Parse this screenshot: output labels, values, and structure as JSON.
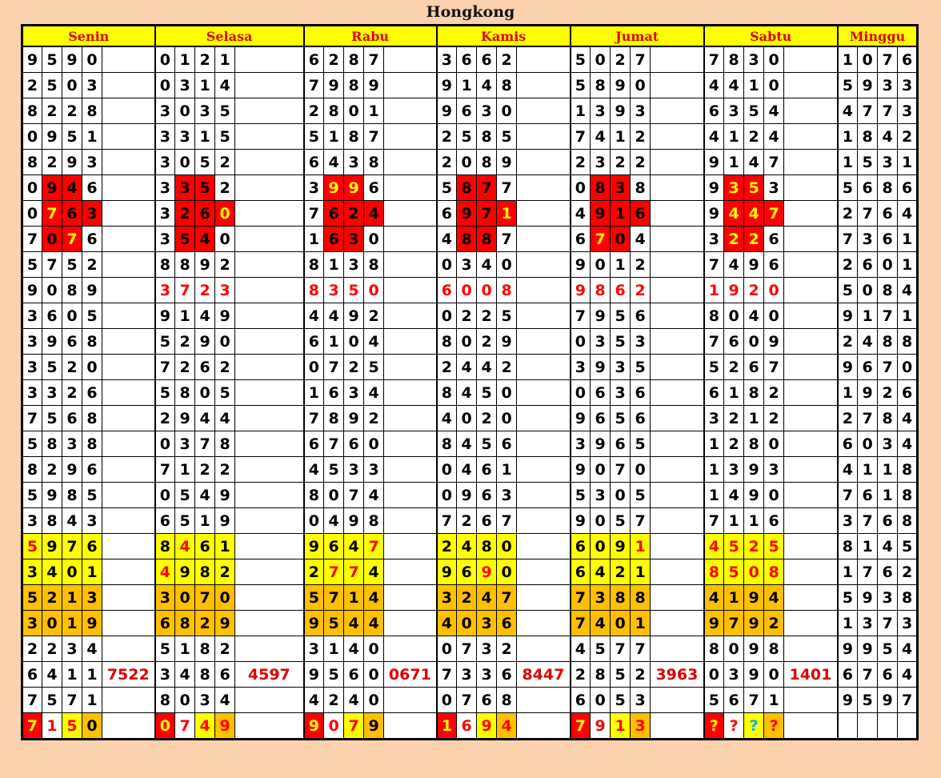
{
  "title": "Hongkong",
  "colors": {
    "header_bg": "#ffff00",
    "header_text": "#e00000",
    "red": "#ff0000",
    "yellow": "#ffff00",
    "orange": "#ffc000",
    "cyan": "#00b0f0",
    "page_bg": "#fbd2ad"
  },
  "cell_codes": {
    "bg": {
      "w": "white",
      "r": "red",
      "y": "yellow",
      "o": "orange"
    },
    "fg": {
      "k": "black",
      "r": "red",
      "y": "yellow",
      "c": "cyan"
    }
  },
  "days": [
    "Senin",
    "Selasa",
    "Rabu",
    "Kamis",
    "Jumat",
    "Sabtu",
    "Minggu"
  ],
  "rows": [
    [
      "9590",
      "0121",
      "6287",
      "3662",
      "5027",
      "7830",
      "1076"
    ],
    [
      "2503",
      "0314",
      "7989",
      "9148",
      "5890",
      "4410",
      "5933"
    ],
    [
      "8228",
      "3035",
      "2801",
      "9630",
      "1393",
      "6354",
      "4773"
    ],
    [
      "0951",
      "3315",
      "5187",
      "2585",
      "7412",
      "4124",
      "1842"
    ],
    [
      "8293",
      "3052",
      "6438",
      "2089",
      "2322",
      "9147",
      "1531"
    ],
    [
      {
        "d": "0946",
        "bg": "wrrw"
      },
      {
        "d": "3352",
        "bg": "wrrw"
      },
      {
        "d": "3996",
        "bg": "wrrw",
        "fg": "kyyk"
      },
      {
        "d": "5877",
        "bg": "wrrw"
      },
      {
        "d": "0838",
        "bg": "wrrw"
      },
      {
        "d": "9353",
        "bg": "wrrw",
        "fg": "kyyk"
      },
      "5686"
    ],
    [
      {
        "d": "0763",
        "bg": "wrrr",
        "fg": "kykk"
      },
      {
        "d": "3260",
        "bg": "wrrr",
        "fg": "kkky"
      },
      {
        "d": "7624",
        "bg": "wrrr"
      },
      {
        "d": "6971",
        "bg": "wrrr",
        "fg": "kkky"
      },
      {
        "d": "4916",
        "bg": "wrrr"
      },
      {
        "d": "9447",
        "bg": "wrrr",
        "fg": "kyyy"
      },
      "2764"
    ],
    [
      {
        "d": "7076",
        "bg": "wrrw",
        "fg": "kkyk"
      },
      {
        "d": "3540",
        "bg": "wrrw"
      },
      {
        "d": "1630",
        "bg": "wrrw"
      },
      {
        "d": "4887",
        "bg": "wrrw"
      },
      {
        "d": "6704",
        "bg": "wrrw",
        "fg": "kykk"
      },
      {
        "d": "3226",
        "bg": "wrrw",
        "fg": "kyyk"
      },
      "7361"
    ],
    [
      "5752",
      "8892",
      "8138",
      "0340",
      "9012",
      "7496",
      "2601"
    ],
    [
      "9089",
      {
        "d": "3723",
        "fg": "rrrr"
      },
      {
        "d": "8350",
        "fg": "rrrr"
      },
      {
        "d": "6008",
        "fg": "rrrr"
      },
      {
        "d": "9862",
        "fg": "rrrr"
      },
      {
        "d": "1920",
        "fg": "rrrr"
      },
      "5084"
    ],
    [
      "3605",
      "9149",
      "4492",
      "0225",
      "7956",
      "8040",
      "9171"
    ],
    [
      "3968",
      "5290",
      "6104",
      "8029",
      "0353",
      "7609",
      "2488"
    ],
    [
      "3520",
      "7262",
      "0725",
      "2442",
      "3935",
      "5267",
      "9670"
    ],
    [
      "3326",
      "5805",
      "1634",
      "8450",
      "0636",
      "6182",
      "1926"
    ],
    [
      "7568",
      "2944",
      "7892",
      "4020",
      "9656",
      "3212",
      "2784"
    ],
    [
      "5838",
      "0378",
      "6760",
      "8456",
      "3965",
      "1280",
      "6034"
    ],
    [
      "8296",
      "7122",
      "4533",
      "0461",
      "9070",
      "1393",
      "4118"
    ],
    [
      "5985",
      "0549",
      "8074",
      "0963",
      "5305",
      "1490",
      "7618"
    ],
    [
      "3843",
      "6519",
      "0498",
      "7267",
      "9057",
      "7116",
      "3768"
    ],
    [
      {
        "d": "5976",
        "bg": "yyyy",
        "fg": "rkkk"
      },
      {
        "d": "8461",
        "bg": "yyyy",
        "fg": "krkk"
      },
      {
        "d": "9647",
        "bg": "yyyy",
        "fg": "kkkr"
      },
      {
        "d": "2480",
        "bg": "yyyy"
      },
      {
        "d": "6091",
        "bg": "yyyy",
        "fg": "kkkr"
      },
      {
        "d": "4525",
        "bg": "yyyy",
        "fg": "rrrr"
      },
      "8145"
    ],
    [
      {
        "d": "3401",
        "bg": "yyyy"
      },
      {
        "d": "4982",
        "bg": "yyyy",
        "fg": "rkkk"
      },
      {
        "d": "2774",
        "bg": "yyyy",
        "fg": "krrk"
      },
      {
        "d": "9690",
        "bg": "yyyy",
        "fg": "kkrk"
      },
      {
        "d": "6421",
        "bg": "yyyy"
      },
      {
        "d": "8508",
        "bg": "yyyy",
        "fg": "rrrr"
      },
      "1762"
    ],
    [
      {
        "d": "5213",
        "bg": "oooo"
      },
      {
        "d": "3070",
        "bg": "oooo"
      },
      {
        "d": "5714",
        "bg": "oooo"
      },
      {
        "d": "3247",
        "bg": "oooo"
      },
      {
        "d": "7388",
        "bg": "oooo"
      },
      {
        "d": "4194",
        "bg": "oooo"
      },
      "5938"
    ],
    [
      {
        "d": "3019",
        "bg": "oooo"
      },
      {
        "d": "6829",
        "bg": "oooo"
      },
      {
        "d": "9544",
        "bg": "oooo"
      },
      {
        "d": "4036",
        "bg": "oooo"
      },
      {
        "d": "7401",
        "bg": "oooo"
      },
      {
        "d": "9792",
        "bg": "oooo"
      },
      "1373"
    ],
    [
      "2234",
      "5182",
      "3140",
      "0732",
      "4577",
      "8098",
      "9954"
    ],
    [
      {
        "d": "6411",
        "x": "7522"
      },
      {
        "d": "3486",
        "x": "4597"
      },
      {
        "d": "9560",
        "x": "0671"
      },
      {
        "d": "7336",
        "x": "8447"
      },
      {
        "d": "2852",
        "x": "3963"
      },
      {
        "d": "0390",
        "x": "1401"
      },
      "6764"
    ],
    [
      "7571",
      "8034",
      "4240",
      "0768",
      "6053",
      "5671",
      "9597"
    ],
    [
      {
        "d": "7150",
        "bg": "rwyo",
        "fg": "yrrk"
      },
      {
        "d": "0749",
        "bg": "rwyo",
        "fg": "yrrr"
      },
      {
        "d": "9079",
        "bg": "rwyo",
        "fg": "yrrk"
      },
      {
        "d": "1694",
        "bg": "rwyo",
        "fg": "yrrr"
      },
      {
        "d": "7913",
        "bg": "rwyo",
        "fg": "yrrr"
      },
      {
        "d": "????",
        "bg": "rwyo",
        "fg": "yrcr"
      },
      ""
    ]
  ]
}
